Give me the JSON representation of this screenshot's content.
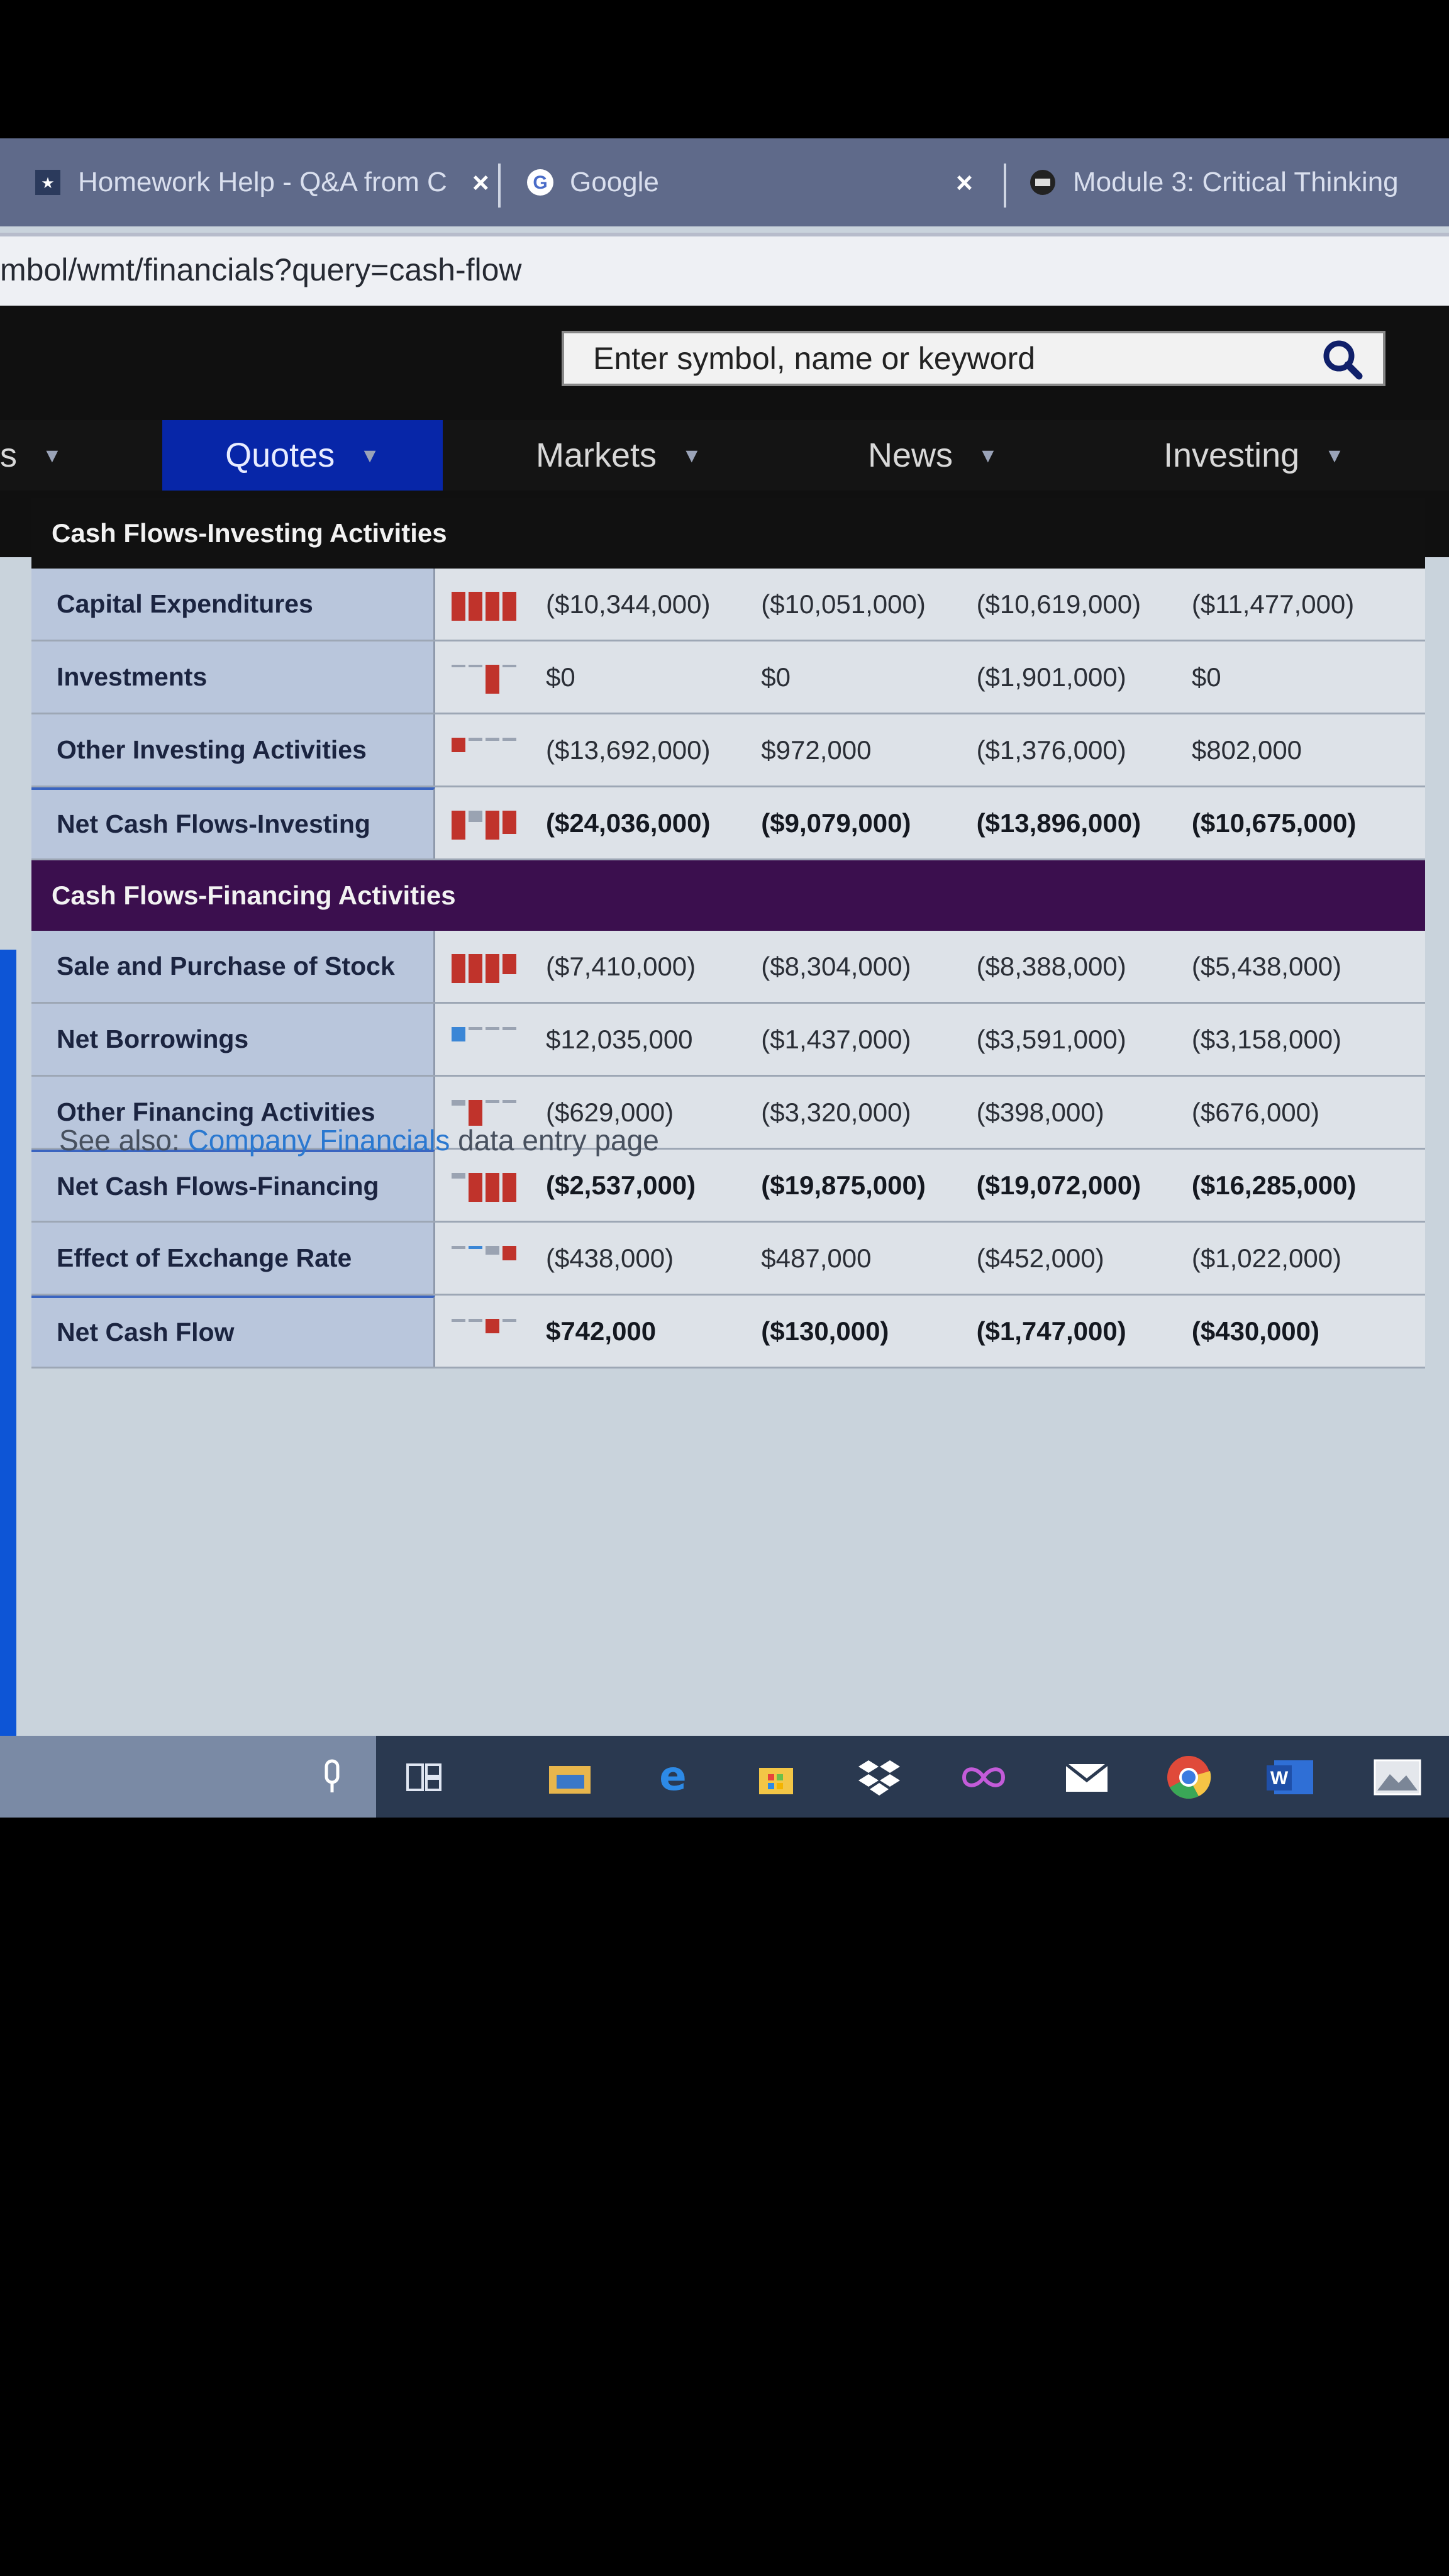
{
  "browser": {
    "tabs": [
      {
        "title": "Homework Help - Q&A from C",
        "close": "×"
      },
      {
        "title": "Google",
        "close": "×"
      },
      {
        "title": "Module 3: Critical Thinking"
      }
    ],
    "url": "mbol/wmt/financials?query=cash-flow"
  },
  "search": {
    "placeholder": "Enter symbol, name or keyword"
  },
  "nav": {
    "items": [
      {
        "label": "s"
      },
      {
        "label": "Quotes"
      },
      {
        "label": "Markets"
      },
      {
        "label": "News"
      },
      {
        "label": "Investing"
      }
    ]
  },
  "table": {
    "investing_title": "Cash Flows-Investing Activities",
    "financing_title": "Cash Flows-Financing Activities",
    "investing_rows": [
      {
        "label": "Capital Expenditures",
        "values": [
          "($10,344,000)",
          "($10,051,000)",
          "($10,619,000)",
          "($11,477,000)"
        ]
      },
      {
        "label": "Investments",
        "values": [
          "$0",
          "$0",
          "($1,901,000)",
          "$0"
        ]
      },
      {
        "label": "Other Investing Activities",
        "values": [
          "($13,692,000)",
          "$972,000",
          "($1,376,000)",
          "$802,000"
        ]
      },
      {
        "label": "Net Cash Flows-Investing",
        "values": [
          "($24,036,000)",
          "($9,079,000)",
          "($13,896,000)",
          "($10,675,000)"
        ]
      }
    ],
    "financing_rows": [
      {
        "label": "Sale and Purchase of Stock",
        "values": [
          "($7,410,000)",
          "($8,304,000)",
          "($8,388,000)",
          "($5,438,000)"
        ]
      },
      {
        "label": "Net Borrowings",
        "values": [
          "$12,035,000",
          "($1,437,000)",
          "($3,591,000)",
          "($3,158,000)"
        ]
      },
      {
        "label": "Other Financing Activities",
        "values": [
          "($629,000)",
          "($3,320,000)",
          "($398,000)",
          "($676,000)"
        ]
      },
      {
        "label": "Net Cash Flows-Financing",
        "values": [
          "($2,537,000)",
          "($19,875,000)",
          "($19,072,000)",
          "($16,285,000)"
        ]
      },
      {
        "label": "Effect of Exchange Rate",
        "values": [
          "($438,000)",
          "$487,000",
          "($452,000)",
          "($1,022,000)"
        ]
      },
      {
        "label": "Net Cash Flow",
        "values": [
          "$742,000",
          "($130,000)",
          "($1,747,000)",
          "($430,000)"
        ]
      }
    ]
  },
  "see_also": {
    "prefix": "See also: ",
    "link": "Company Financials",
    "suffix": " data entry page"
  },
  "taskbar": {
    "icons": [
      "microphone-icon",
      "task-view-icon",
      "file-explorer-icon",
      "edge-icon",
      "store-icon",
      "dropbox-icon",
      "infinity-icon",
      "mail-icon",
      "chrome-icon",
      "word-icon",
      "photos-icon"
    ]
  },
  "colors": {
    "accent_nav": "#0726a8",
    "financing_header": "#3b0f4e",
    "spark_red": "#c0332b",
    "spark_blue": "#3a86d6"
  }
}
